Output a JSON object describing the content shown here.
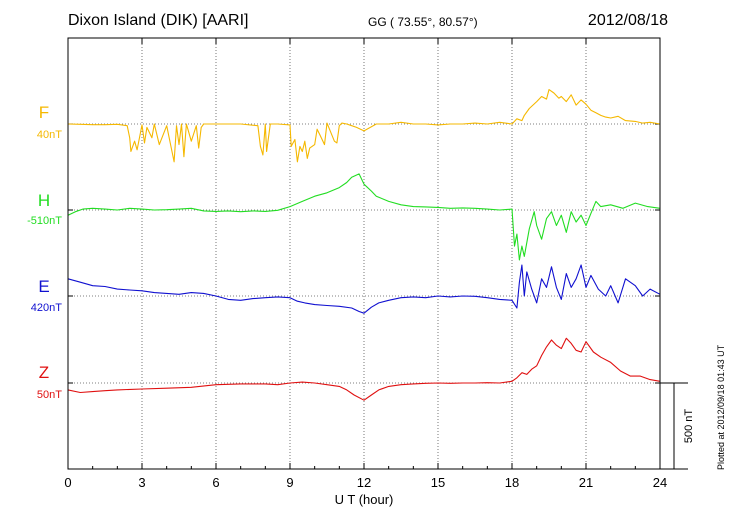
{
  "header": {
    "title": "Dixon Island (DIK)  [AARI]",
    "coords": "GG ( 73.55°,  80.57°)",
    "date": "2012/08/18"
  },
  "footer": {
    "plotted": "Plotted at 2012/09/18 01:43 UT"
  },
  "colors": {
    "F": "#f5b800",
    "H": "#22dd22",
    "E": "#1010d0",
    "Z": "#e01010"
  },
  "chart_data": {
    "type": "line",
    "xlabel": "U T (hour)",
    "xlim": [
      0,
      24
    ],
    "xticks": [
      0,
      3,
      6,
      9,
      12,
      15,
      18,
      21,
      24
    ],
    "xtick_labels": [
      "0",
      "3",
      "6",
      "9",
      "12",
      "15",
      "18",
      "21",
      "24"
    ],
    "scale_bar": {
      "label": "500 nT",
      "value_nT": 500
    },
    "series": [
      {
        "name": "F",
        "baseline_label": "40nT",
        "baseline_nT": 40,
        "x": [
          0,
          0.5,
          1,
          1.5,
          2,
          2.4,
          2.5,
          2.55,
          2.7,
          2.8,
          3,
          3.1,
          3.2,
          3.4,
          3.5,
          3.7,
          4,
          4.3,
          4.4,
          4.5,
          4.6,
          4.7,
          4.8,
          5,
          5.2,
          5.3,
          5.4,
          5.5,
          6,
          7,
          7.7,
          7.8,
          7.9,
          8,
          8.05,
          8.2,
          8.5,
          9,
          9.05,
          9.2,
          9.3,
          9.4,
          9.5,
          9.6,
          9.7,
          9.8,
          10,
          10.1,
          10.2,
          10.3,
          10.4,
          10.5,
          10.8,
          10.9,
          11,
          11.1,
          11.3,
          11.5,
          11.7,
          12,
          12.5,
          13,
          13.5,
          14,
          14.5,
          15,
          15.5,
          16,
          16.5,
          17,
          17.5,
          18,
          18.2,
          18.4,
          18.5,
          18.7,
          19,
          19.2,
          19.4,
          19.5,
          19.7,
          19.9,
          20,
          20.2,
          20.4,
          20.6,
          20.8,
          21,
          21.2,
          21.4,
          21.6,
          21.8,
          22,
          22.3,
          22.6,
          23,
          23.3,
          23.6,
          24
        ],
        "y": [
          40,
          38,
          36,
          36,
          38,
          30,
          -40,
          -120,
          -60,
          -110,
          35,
          -70,
          20,
          -40,
          40,
          -80,
          30,
          -180,
          30,
          -80,
          40,
          -150,
          40,
          -60,
          30,
          -100,
          20,
          40,
          40,
          40,
          30,
          -90,
          -140,
          40,
          -120,
          40,
          40,
          35,
          -90,
          -50,
          -180,
          -90,
          -120,
          -60,
          -160,
          -100,
          -80,
          10,
          -20,
          -50,
          -80,
          45,
          -60,
          -70,
          30,
          45,
          40,
          30,
          20,
          0,
          40,
          40,
          50,
          40,
          40,
          35,
          40,
          40,
          45,
          40,
          50,
          40,
          70,
          60,
          90,
          130,
          170,
          200,
          185,
          240,
          220,
          190,
          200,
          170,
          210,
          150,
          180,
          155,
          120,
          105,
          90,
          80,
          75,
          85,
          60,
          55,
          45,
          50,
          40
        ]
      },
      {
        "name": "H",
        "baseline_label": "-510nT",
        "baseline_nT": -510,
        "x": [
          0,
          0.3,
          0.6,
          1,
          1.5,
          2,
          2.5,
          3,
          3.5,
          4,
          4.5,
          5,
          5.5,
          6,
          6.5,
          7,
          7.5,
          8,
          8.5,
          9,
          9.5,
          10,
          10.5,
          11,
          11.3,
          11.5,
          11.8,
          12,
          12.3,
          12.5,
          13,
          13.5,
          14,
          14.5,
          15,
          15.5,
          16,
          16.5,
          17,
          17.5,
          18,
          18.1,
          18.2,
          18.3,
          18.4,
          18.5,
          18.7,
          18.9,
          19,
          19.2,
          19.4,
          19.6,
          19.8,
          20,
          20.2,
          20.4,
          20.6,
          20.8,
          21,
          21.2,
          21.4,
          21.6,
          22,
          22.5,
          23,
          23.5,
          24
        ],
        "y": [
          -540,
          -520,
          -505,
          -500,
          -505,
          -510,
          -500,
          -505,
          -510,
          -508,
          -505,
          -500,
          -515,
          -518,
          -515,
          -520,
          -515,
          -518,
          -512,
          -490,
          -460,
          -430,
          -410,
          -380,
          -350,
          -320,
          -300,
          -360,
          -400,
          -430,
          -460,
          -480,
          -490,
          -492,
          -495,
          -500,
          -498,
          -500,
          -505,
          -510,
          -505,
          -720,
          -650,
          -800,
          -720,
          -780,
          -620,
          -520,
          -600,
          -680,
          -560,
          -520,
          -600,
          -540,
          -640,
          -520,
          -580,
          -540,
          -600,
          -530,
          -460,
          -490,
          -480,
          -500,
          -470,
          -490,
          -500
        ]
      },
      {
        "name": "E",
        "baseline_label": "420nT",
        "baseline_nT": 420,
        "x": [
          0,
          0.5,
          1,
          1.5,
          2,
          2.5,
          3,
          3.5,
          4,
          4.5,
          5,
          5.5,
          6,
          6.5,
          7,
          7.5,
          8,
          8.5,
          9,
          9.3,
          9.6,
          10,
          10.5,
          11,
          11.5,
          11.8,
          12,
          12.3,
          12.6,
          13,
          13.5,
          14,
          14.5,
          15,
          15.5,
          16,
          16.5,
          17,
          17.5,
          18,
          18.2,
          18.3,
          18.4,
          18.5,
          18.6,
          18.8,
          19,
          19.2,
          19.4,
          19.6,
          19.8,
          20,
          20.2,
          20.4,
          20.6,
          20.8,
          21,
          21.2,
          21.5,
          21.8,
          22,
          22.3,
          22.6,
          23,
          23.3,
          23.6,
          24
        ],
        "y": [
          520,
          500,
          480,
          475,
          460,
          455,
          450,
          440,
          435,
          430,
          440,
          435,
          420,
          400,
          395,
          405,
          410,
          415,
          410,
          390,
          380,
          370,
          365,
          360,
          350,
          330,
          320,
          355,
          380,
          395,
          410,
          415,
          410,
          420,
          415,
          420,
          418,
          410,
          400,
          395,
          350,
          500,
          600,
          420,
          560,
          460,
          380,
          520,
          470,
          590,
          470,
          400,
          550,
          470,
          520,
          600,
          470,
          540,
          460,
          420,
          480,
          380,
          520,
          480,
          420,
          460,
          430
        ]
      },
      {
        "name": "Z",
        "baseline_label": "50nT",
        "baseline_nT": 50,
        "x": [
          0,
          0.5,
          1,
          1.5,
          2,
          3,
          4,
          5,
          6,
          7,
          8,
          8.5,
          9,
          9.5,
          10,
          10.5,
          11,
          11.3,
          11.6,
          12,
          12.3,
          12.6,
          13,
          13.5,
          14,
          14.5,
          15,
          15.5,
          16,
          16.5,
          17,
          17.5,
          18,
          18.2,
          18.4,
          18.6,
          18.8,
          19,
          19.2,
          19.4,
          19.6,
          19.8,
          20,
          20.2,
          20.4,
          20.6,
          20.8,
          21,
          21.3,
          21.6,
          22,
          22.4,
          22.8,
          23.2,
          23.6,
          24
        ],
        "y": [
          10,
          -5,
          0,
          5,
          10,
          15,
          20,
          25,
          40,
          45,
          45,
          40,
          50,
          55,
          50,
          40,
          30,
          10,
          -20,
          -50,
          -20,
          10,
          30,
          40,
          45,
          48,
          50,
          48,
          50,
          50,
          52,
          50,
          60,
          80,
          110,
          100,
          130,
          150,
          210,
          260,
          300,
          270,
          250,
          310,
          280,
          240,
          230,
          290,
          230,
          200,
          170,
          120,
          90,
          90,
          70,
          60
        ]
      }
    ]
  }
}
